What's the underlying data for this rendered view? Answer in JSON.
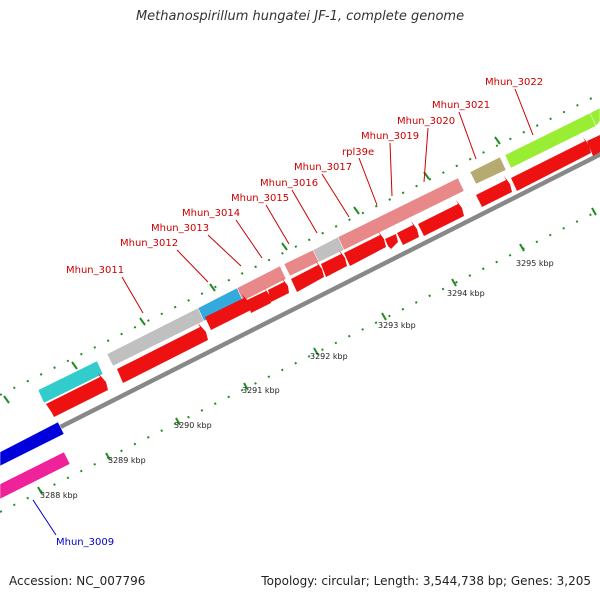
{
  "title": "Methanospirillum hungatei JF-1, complete genome",
  "accession": "Accession: NC_007796",
  "summary": "Topology: circular; Length: 3,544,738 bp; Genes: 3,205",
  "scale": {
    "ticks": [
      {
        "label": "3288 kbp"
      },
      {
        "label": "3289 kbp"
      },
      {
        "label": "3290 kbp"
      },
      {
        "label": "3291 kbp"
      },
      {
        "label": "3292 kbp"
      },
      {
        "label": "3293 kbp"
      },
      {
        "label": "3294 kbp"
      },
      {
        "label": "3295 kbp"
      }
    ]
  },
  "genes": [
    {
      "label": "Mhun_3009",
      "color": "#0000cc"
    },
    {
      "label": "Mhun_3011",
      "color": "#cc0000"
    },
    {
      "label": "Mhun_3012",
      "color": "#cc0000"
    },
    {
      "label": "Mhun_3013",
      "color": "#cc0000"
    },
    {
      "label": "Mhun_3014",
      "color": "#cc0000"
    },
    {
      "label": "Mhun_3015",
      "color": "#cc0000"
    },
    {
      "label": "Mhun_3016",
      "color": "#cc0000"
    },
    {
      "label": "Mhun_3017",
      "color": "#cc0000"
    },
    {
      "label": "rpl39e",
      "color": "#cc0000"
    },
    {
      "label": "Mhun_3019",
      "color": "#cc0000"
    },
    {
      "label": "Mhun_3020",
      "color": "#cc0000"
    },
    {
      "label": "Mhun_3021",
      "color": "#cc0000"
    },
    {
      "label": "Mhun_3022",
      "color": "#cc0000"
    }
  ],
  "colors": {
    "backbone": "#888888",
    "cds": "#ee1111",
    "tick": "#228b22",
    "cog_cyan": "#33cccc",
    "cog_grey": "#c0c0c0",
    "cog_blue": "#33aadd",
    "cog_pink": "#e88888",
    "cog_olive": "#b5ab70",
    "cog_lime": "#99ee33",
    "cog_navy": "#0000dd",
    "cog_magenta": "#ee2299"
  }
}
